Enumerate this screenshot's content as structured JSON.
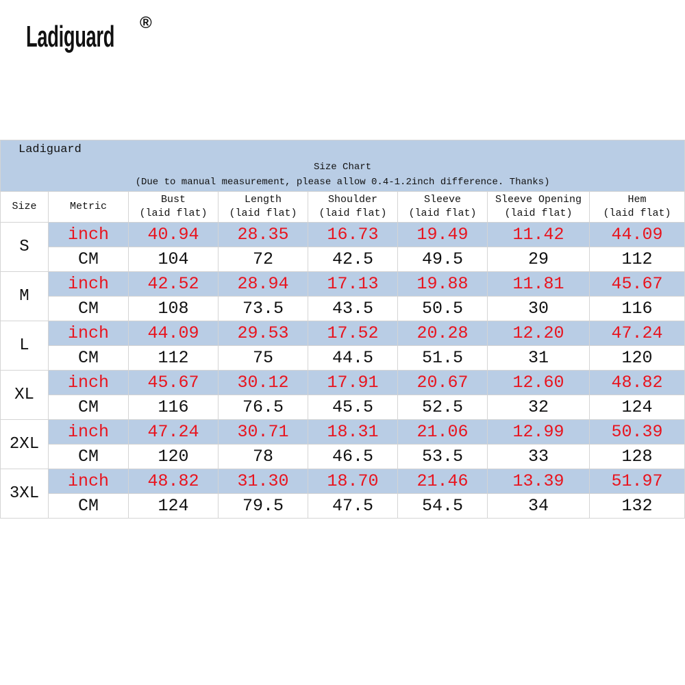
{
  "logo": {
    "text": "Ladiguard",
    "registered_mark": "®"
  },
  "table": {
    "brand": "Ladiguard",
    "title": "Size Chart",
    "note": "(Due to manual measurement, please allow 0.4-1.2inch difference. Thanks)",
    "header": {
      "size": "Size",
      "metric": "Metric",
      "columns": [
        {
          "name": "Bust",
          "sub": "(laid flat)"
        },
        {
          "name": "Length",
          "sub": "(laid flat)"
        },
        {
          "name": "Shoulder",
          "sub": "(laid flat)"
        },
        {
          "name": "Sleeve",
          "sub": "(laid flat)"
        },
        {
          "name": "Sleeve Opening",
          "sub": "(laid flat)"
        },
        {
          "name": "Hem",
          "sub": "(laid flat)"
        }
      ]
    },
    "rows": [
      {
        "size": "S",
        "inch_label": "inch",
        "cm_label": "CM",
        "inch": [
          "40.94",
          "28.35",
          "16.73",
          "19.49",
          "11.42",
          "44.09"
        ],
        "cm": [
          "104",
          "72",
          "42.5",
          "49.5",
          "29",
          "112"
        ]
      },
      {
        "size": "M",
        "inch_label": "inch",
        "cm_label": "CM",
        "inch": [
          "42.52",
          "28.94",
          "17.13",
          "19.88",
          "11.81",
          "45.67"
        ],
        "cm": [
          "108",
          "73.5",
          "43.5",
          "50.5",
          "30",
          "116"
        ]
      },
      {
        "size": "L",
        "inch_label": "inch",
        "cm_label": "CM",
        "inch": [
          "44.09",
          "29.53",
          "17.52",
          "20.28",
          "12.20",
          "47.24"
        ],
        "cm": [
          "112",
          "75",
          "44.5",
          "51.5",
          "31",
          "120"
        ]
      },
      {
        "size": "XL",
        "inch_label": "inch",
        "cm_label": "CM",
        "inch": [
          "45.67",
          "30.12",
          "17.91",
          "20.67",
          "12.60",
          "48.82"
        ],
        "cm": [
          "116",
          "76.5",
          "45.5",
          "52.5",
          "32",
          "124"
        ]
      },
      {
        "size": "2XL",
        "inch_label": "inch",
        "cm_label": "CM",
        "inch": [
          "47.24",
          "30.71",
          "18.31",
          "21.06",
          "12.99",
          "50.39"
        ],
        "cm": [
          "120",
          "78",
          "46.5",
          "53.5",
          "33",
          "128"
        ]
      },
      {
        "size": "3XL",
        "inch_label": "inch",
        "cm_label": "CM",
        "inch": [
          "48.82",
          "31.30",
          "18.70",
          "21.46",
          "13.39",
          "51.97"
        ],
        "cm": [
          "124",
          "79.5",
          "47.5",
          "54.5",
          "34",
          "132"
        ]
      }
    ]
  },
  "colors": {
    "row_highlight": "#b9cde5",
    "inch_text": "#e8141e",
    "cm_text": "#111111"
  }
}
